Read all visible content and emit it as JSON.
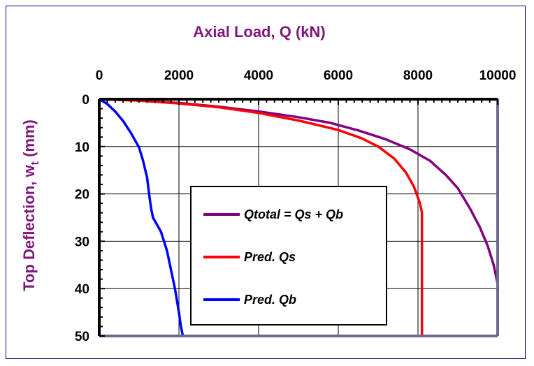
{
  "chart_data": {
    "type": "line",
    "x_axis": {
      "title": "Axial Load, Q (kN)",
      "range": [
        0,
        10000
      ],
      "ticks": [
        0,
        2000,
        4000,
        6000,
        8000,
        10000
      ],
      "position": "top"
    },
    "y_axis": {
      "title": "Top Deflection, w",
      "title_subscript": "t",
      "title_suffix": " (mm)",
      "range": [
        0,
        50
      ],
      "ticks": [
        0,
        10,
        20,
        30,
        40,
        50
      ],
      "inverted": true
    },
    "grid": true,
    "legend_position": "center-right",
    "series": [
      {
        "name": "Qtotal = Qs + Qb",
        "color": "#800080",
        "points": [
          [
            0,
            0
          ],
          [
            1000,
            0.3
          ],
          [
            2000,
            0.8
          ],
          [
            3000,
            1.6
          ],
          [
            4000,
            2.6
          ],
          [
            5000,
            3.8
          ],
          [
            5800,
            5.0
          ],
          [
            6500,
            6.6
          ],
          [
            7200,
            8.5
          ],
          [
            7800,
            10.6
          ],
          [
            8300,
            13.0
          ],
          [
            8700,
            16.0
          ],
          [
            9000,
            18.8
          ],
          [
            9300,
            23.0
          ],
          [
            9550,
            27.0
          ],
          [
            9750,
            31.0
          ],
          [
            9900,
            35.0
          ],
          [
            10000,
            39.0
          ],
          [
            10000,
            40.5
          ]
        ]
      },
      {
        "name": "Pred. Qs",
        "color": "#ff0000",
        "points": [
          [
            0,
            0
          ],
          [
            1000,
            0.3
          ],
          [
            2000,
            0.9
          ],
          [
            3000,
            1.7
          ],
          [
            4000,
            2.9
          ],
          [
            5000,
            4.5
          ],
          [
            6000,
            6.5
          ],
          [
            6600,
            8.3
          ],
          [
            7000,
            10.0
          ],
          [
            7400,
            12.5
          ],
          [
            7700,
            15.5
          ],
          [
            7900,
            18.5
          ],
          [
            8050,
            22.0
          ],
          [
            8100,
            24.0
          ],
          [
            8100,
            50.0
          ]
        ]
      },
      {
        "name": "Pred. Qb",
        "color": "#0000ff",
        "points": [
          [
            0,
            0
          ],
          [
            200,
            1.0
          ],
          [
            400,
            2.6
          ],
          [
            600,
            4.6
          ],
          [
            800,
            7.2
          ],
          [
            1000,
            10.2
          ],
          [
            1100,
            13.0
          ],
          [
            1200,
            16.5
          ],
          [
            1250,
            20.0
          ],
          [
            1300,
            23.0
          ],
          [
            1350,
            25.0
          ],
          [
            1550,
            28.0
          ],
          [
            1700,
            32.0
          ],
          [
            1800,
            36.0
          ],
          [
            1900,
            40.0
          ],
          [
            2000,
            45.0
          ],
          [
            2050,
            48.0
          ],
          [
            2100,
            50.0
          ]
        ]
      }
    ]
  }
}
